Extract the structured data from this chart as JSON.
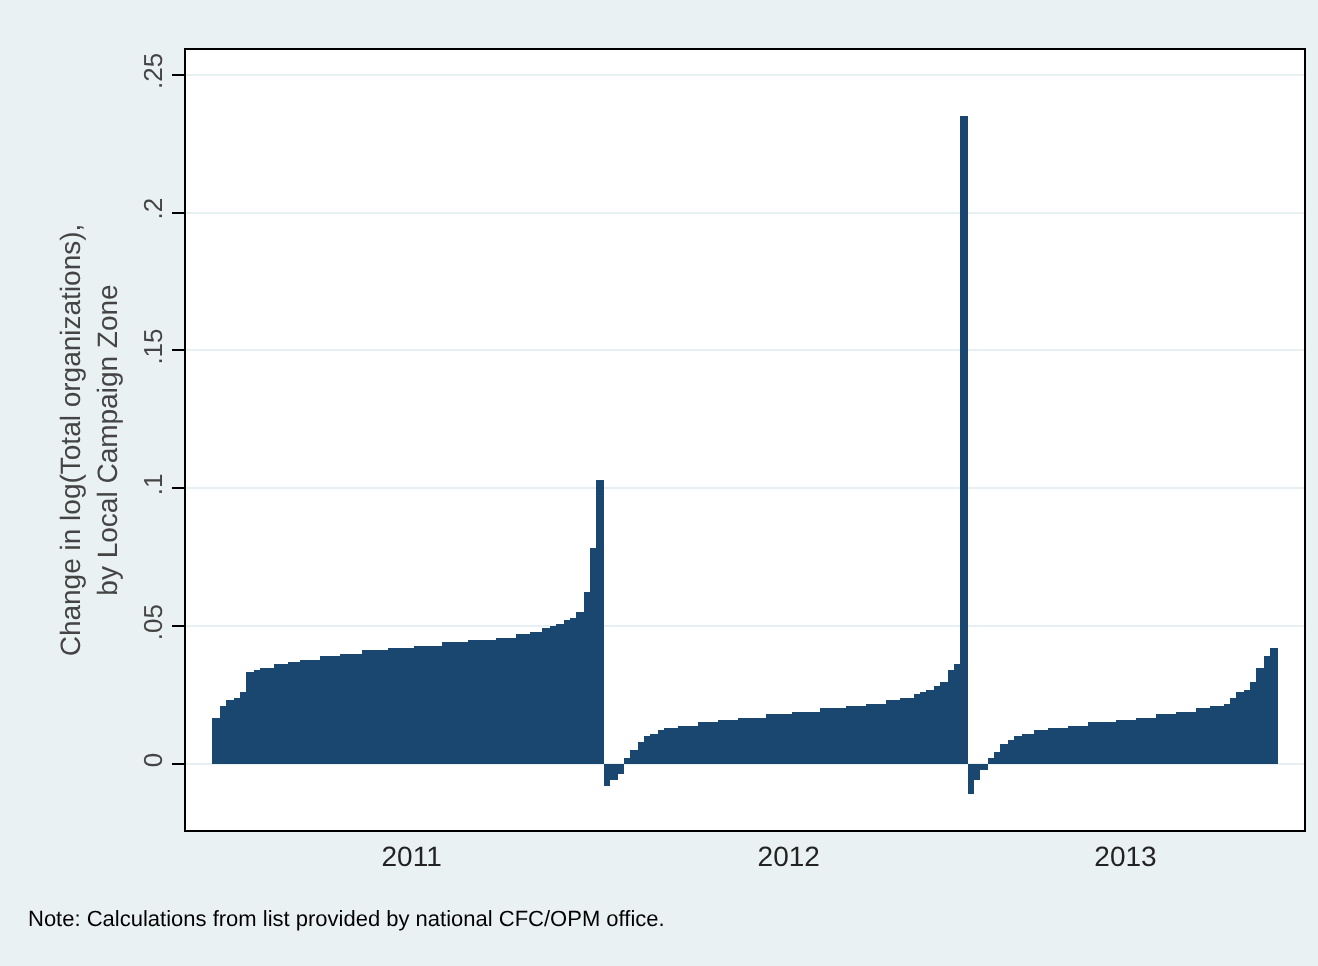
{
  "chart_data": {
    "type": "bar",
    "ylabel": "Change in log(Total organizations),\nby Local Campaign Zone",
    "annotations": [
      "Note: Calculations from list provided by national CFC/OPM office."
    ],
    "categories": [
      null,
      null,
      null,
      null,
      null,
      null,
      null,
      null,
      null,
      null,
      null,
      null,
      null,
      null,
      null,
      null,
      null,
      null,
      null,
      null,
      null,
      null,
      null,
      null,
      null,
      null,
      null,
      null,
      null,
      "2011",
      null,
      null,
      null,
      null,
      null,
      null,
      null,
      null,
      null,
      null,
      null,
      null,
      null,
      null,
      null,
      null,
      null,
      null,
      null,
      null,
      null,
      null,
      null,
      null,
      null,
      null,
      null,
      null,
      null,
      null,
      null,
      null,
      null,
      null,
      null,
      null,
      null,
      null,
      null,
      null,
      null,
      null,
      null,
      null,
      null,
      null,
      null,
      null,
      null,
      null,
      null,
      null,
      null,
      null,
      null,
      "2012",
      null,
      null,
      null,
      null,
      null,
      null,
      null,
      null,
      null,
      null,
      null,
      null,
      null,
      null,
      null,
      null,
      null,
      null,
      null,
      null,
      null,
      null,
      null,
      null,
      null,
      null,
      null,
      null,
      null,
      null,
      null,
      null,
      null,
      null,
      null,
      null,
      null,
      null,
      null,
      null,
      null,
      null,
      null,
      null,
      null,
      null,
      null,
      null,
      null,
      "2013",
      null,
      null,
      null,
      null,
      null,
      null,
      null,
      null,
      null,
      null,
      null,
      null,
      null,
      null,
      null,
      null,
      null,
      null,
      null,
      null,
      null,
      null
    ],
    "values": [
      0.017,
      0.021,
      0.023,
      0.024,
      0.026,
      0.033,
      0.034,
      0.035,
      0.035,
      0.036,
      0.036,
      0.037,
      0.037,
      0.038,
      0.038,
      0.038,
      0.039,
      0.039,
      0.039,
      0.04,
      0.04,
      0.04,
      0.041,
      0.041,
      0.041,
      0.041,
      0.042,
      0.042,
      0.042,
      0.042,
      0.043,
      0.043,
      0.043,
      0.043,
      0.044,
      0.044,
      0.044,
      0.044,
      0.045,
      0.045,
      0.045,
      0.045,
      0.046,
      0.046,
      0.046,
      0.047,
      0.047,
      0.048,
      0.048,
      0.049,
      0.05,
      0.051,
      0.052,
      0.053,
      0.055,
      0.062,
      0.078,
      0.103,
      -0.008,
      -0.006,
      -0.004,
      0.002,
      0.005,
      0.008,
      0.01,
      0.011,
      0.012,
      0.013,
      0.013,
      0.014,
      0.014,
      0.014,
      0.015,
      0.015,
      0.015,
      0.016,
      0.016,
      0.016,
      0.017,
      0.017,
      0.017,
      0.017,
      0.018,
      0.018,
      0.018,
      0.018,
      0.019,
      0.019,
      0.019,
      0.019,
      0.02,
      0.02,
      0.02,
      0.02,
      0.021,
      0.021,
      0.021,
      0.022,
      0.022,
      0.022,
      0.023,
      0.023,
      0.024,
      0.024,
      0.025,
      0.026,
      0.027,
      0.028,
      0.03,
      0.034,
      0.036,
      0.235,
      -0.011,
      -0.006,
      -0.002,
      0.002,
      0.004,
      0.007,
      0.009,
      0.01,
      0.011,
      0.011,
      0.012,
      0.012,
      0.013,
      0.013,
      0.013,
      0.014,
      0.014,
      0.014,
      0.015,
      0.015,
      0.015,
      0.015,
      0.016,
      0.016,
      0.016,
      0.017,
      0.017,
      0.017,
      0.018,
      0.018,
      0.018,
      0.019,
      0.019,
      0.019,
      0.02,
      0.02,
      0.021,
      0.021,
      0.022,
      0.024,
      0.026,
      0.027,
      0.03,
      0.035,
      0.039,
      0.042
    ],
    "color": "#1a476f",
    "ylim": [
      -0.024,
      0.259
    ],
    "yticks": [
      0,
      {
        "value": 0.05,
        "label": ".05"
      },
      {
        "value": 0.1,
        "label": ".1"
      },
      {
        "value": 0.15,
        "label": ".15"
      },
      {
        "value": 0.2,
        "label": ".2"
      },
      {
        "value": 0.25,
        "label": ".25"
      }
    ],
    "grid": "y",
    "legend": false
  }
}
